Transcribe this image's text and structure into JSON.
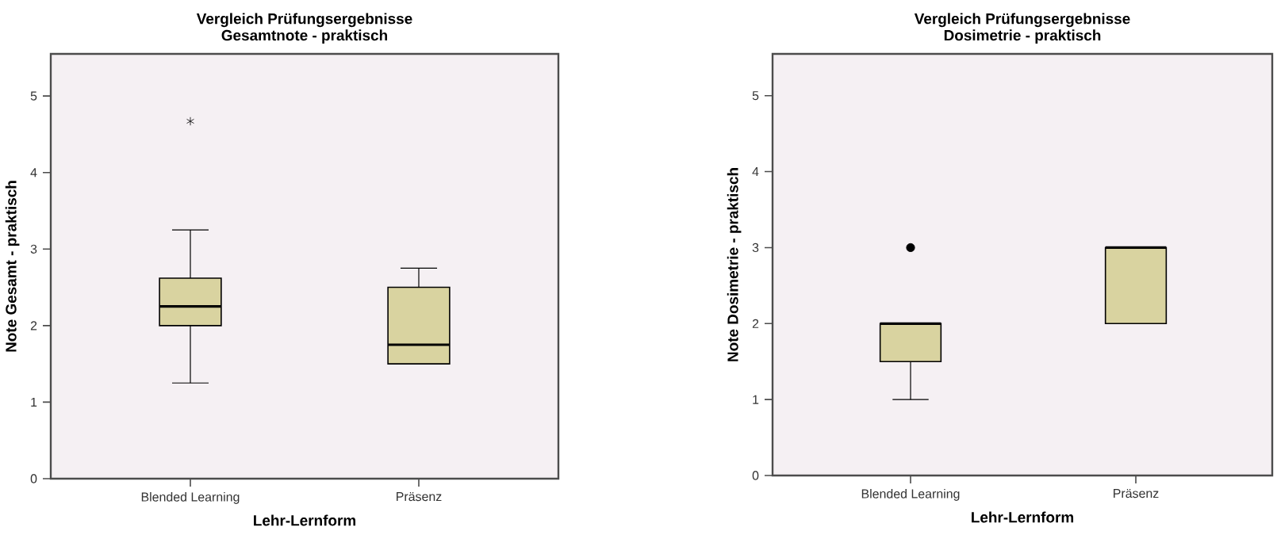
{
  "chart_data": [
    {
      "type": "box",
      "title": "Vergleich Prüfungsergebnisse",
      "subtitle": "Gesamtnote - praktisch",
      "xlabel": "Lehr-Lernform",
      "ylabel": "Note Gesamt - praktisch",
      "categories": [
        "Blended Learning",
        "Präsenz"
      ],
      "ylim": [
        0,
        5.55
      ],
      "yticks": [
        0,
        1,
        2,
        3,
        4,
        5
      ],
      "color": "#d9d3a0",
      "marker": "star",
      "boxes": [
        {
          "low": 1.25,
          "q1": 2.0,
          "median": 2.25,
          "q3": 2.62,
          "high": 3.25,
          "outliers": [
            4.67
          ]
        },
        {
          "low": 1.5,
          "q1": 1.5,
          "median": 1.75,
          "q3": 2.5,
          "high": 2.75
        }
      ]
    },
    {
      "type": "box",
      "title": "Vergleich Prüfungsergebnisse",
      "subtitle": "Dosimetrie - praktisch",
      "xlabel": "Lehr-Lernform",
      "ylabel": "Note Dosimetrie - praktisch",
      "categories": [
        "Blended Learning",
        "Präsenz"
      ],
      "ylim": [
        0,
        5.55
      ],
      "yticks": [
        0,
        1,
        2,
        3,
        4,
        5
      ],
      "color": "#d9d3a0",
      "marker": "circle",
      "boxes": [
        {
          "low": 1.0,
          "q1": 1.5,
          "median": 2.0,
          "q3": 2.0,
          "high": 2.0,
          "outliers": [
            3
          ]
        },
        {
          "low": 2.0,
          "q1": 2.0,
          "median": 3.0,
          "q3": 3.0,
          "high": 3.0
        }
      ]
    }
  ]
}
